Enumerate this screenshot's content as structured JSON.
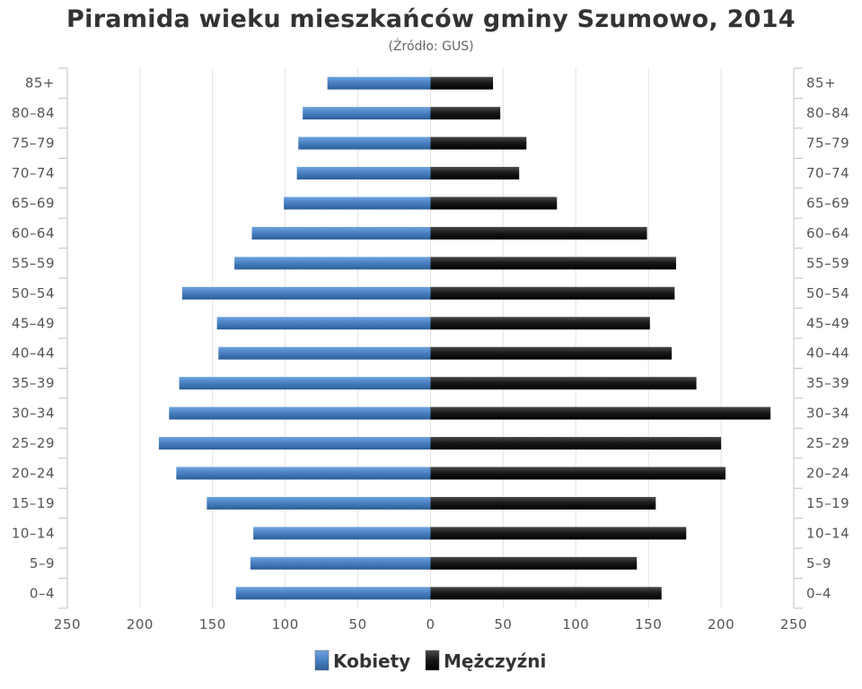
{
  "chart_data": {
    "type": "bar",
    "orientation": "horizontal-population-pyramid",
    "title": "Piramida wieku mieszkańców gminy Szumowo, 2014",
    "subtitle": "(Źródło: GUS)",
    "categories": [
      "0–4",
      "5–9",
      "10–14",
      "15–19",
      "20–24",
      "25–29",
      "30–34",
      "35–39",
      "40–44",
      "45–49",
      "50–54",
      "55–59",
      "60–64",
      "65–69",
      "70–74",
      "75–79",
      "80–84",
      "85+"
    ],
    "series": [
      {
        "name": "Kobiety",
        "color": "#4f86c6",
        "values": [
          134,
          124,
          122,
          154,
          175,
          187,
          180,
          173,
          146,
          147,
          171,
          135,
          123,
          101,
          92,
          91,
          88,
          71
        ]
      },
      {
        "name": "Mężczyźni",
        "color": "#1f1f1f",
        "values": [
          159,
          142,
          176,
          155,
          203,
          200,
          234,
          183,
          166,
          151,
          168,
          169,
          149,
          87,
          61,
          66,
          48,
          43
        ]
      }
    ],
    "xticks": [
      "250",
      "200",
      "150",
      "100",
      "50",
      "0",
      "50",
      "100",
      "150",
      "200",
      "250"
    ],
    "xlim": [
      -250,
      250
    ],
    "grid": true,
    "legend_position": "bottom-center"
  }
}
